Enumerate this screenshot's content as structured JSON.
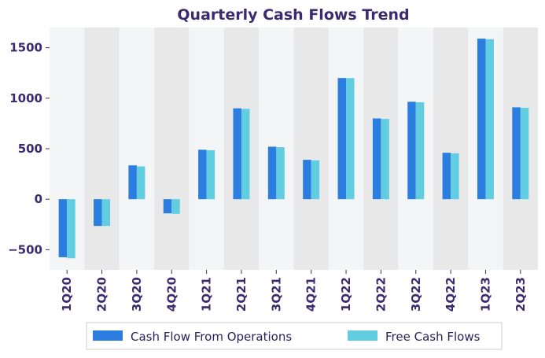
{
  "chart_data": {
    "type": "bar",
    "title": "Quarterly Cash Flows Trend",
    "xlabel": "",
    "ylabel": "",
    "categories": [
      "1Q20",
      "2Q20",
      "3Q20",
      "4Q20",
      "1Q21",
      "2Q21",
      "3Q21",
      "4Q21",
      "1Q22",
      "2Q22",
      "3Q22",
      "4Q22",
      "1Q23",
      "2Q23"
    ],
    "series": [
      {
        "name": "Cash Flow From Operations",
        "color": "#2b7de0",
        "values": [
          -575,
          -265,
          335,
          -140,
          490,
          900,
          520,
          390,
          1200,
          800,
          965,
          460,
          1590,
          910
        ]
      },
      {
        "name": "Free Cash Flows",
        "color": "#62cde0",
        "values": [
          -585,
          -265,
          325,
          -145,
          485,
          895,
          515,
          385,
          1200,
          795,
          960,
          455,
          1585,
          905
        ]
      }
    ],
    "ylim": [
      -700,
      1700
    ],
    "yticks": [
      -500,
      0,
      500,
      1000,
      1500
    ],
    "ytick_labels": [
      "−500",
      "0",
      "500",
      "1000",
      "1500"
    ],
    "grid": false,
    "band_colors": [
      "#f4f5f6",
      "#e8e8e9"
    ],
    "legend_position": "bottom-center"
  }
}
